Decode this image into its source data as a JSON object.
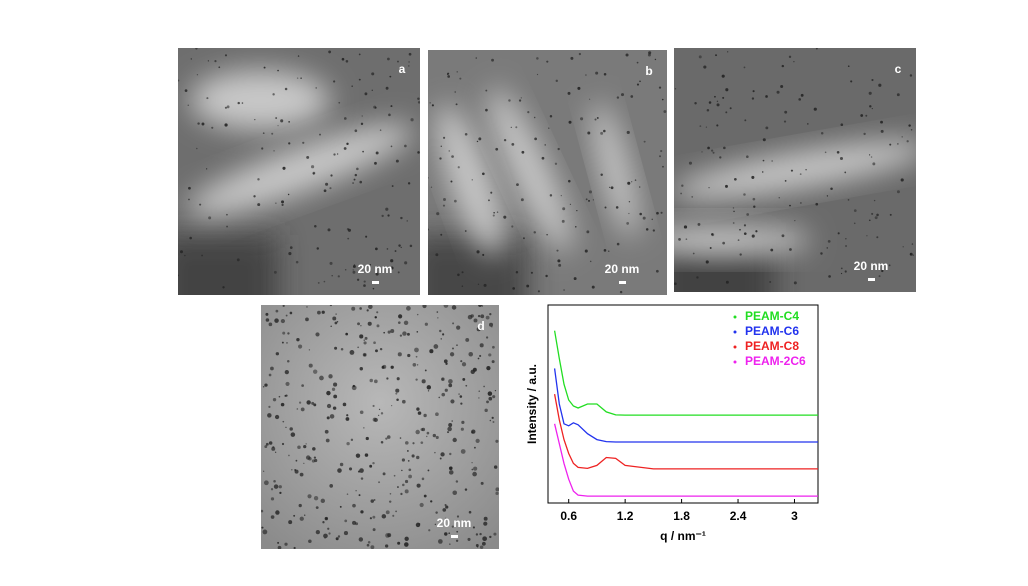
{
  "panels": [
    {
      "label": "a",
      "scale": "20 nm"
    },
    {
      "label": "b",
      "scale": "20 nm"
    },
    {
      "label": "c",
      "scale": "20 nm"
    },
    {
      "label": "d",
      "scale": "20 nm"
    }
  ],
  "chart_data": {
    "type": "line",
    "x_label": "q / nm⁻¹",
    "y_label": "Intensity / a.u.",
    "x": [
      0.45,
      0.5,
      0.55,
      0.6,
      0.65,
      0.7,
      0.8,
      0.9,
      1.0,
      1.1,
      1.2,
      1.5,
      2.0,
      2.5,
      3.0,
      3.25
    ],
    "series": [
      {
        "name": "PEAM-C4",
        "color": "#22dd22",
        "values": [
          8.7,
          7.3,
          6.0,
          5.2,
          4.9,
          4.8,
          5.0,
          5.0,
          4.6,
          4.45,
          4.44,
          4.44,
          4.44,
          4.44,
          4.44,
          4.44
        ]
      },
      {
        "name": "PEAM-C6",
        "color": "#2233ee",
        "values": [
          6.8,
          5.0,
          4.0,
          3.9,
          4.05,
          3.95,
          3.5,
          3.2,
          3.1,
          3.08,
          3.08,
          3.08,
          3.08,
          3.08,
          3.08,
          3.08
        ]
      },
      {
        "name": "PEAM-C8",
        "color": "#ee2222",
        "values": [
          5.5,
          4.2,
          3.2,
          2.5,
          2.0,
          1.8,
          1.75,
          1.9,
          2.3,
          2.25,
          1.9,
          1.72,
          1.72,
          1.72,
          1.72,
          1.72
        ]
      },
      {
        "name": "PEAM-2C6",
        "color": "#ee22ee",
        "values": [
          4.0,
          3.0,
          2.0,
          1.2,
          0.6,
          0.4,
          0.35,
          0.35,
          0.35,
          0.35,
          0.35,
          0.35,
          0.35,
          0.35,
          0.35,
          0.35
        ]
      }
    ],
    "xlim": [
      0.38,
      3.25
    ],
    "ylim": [
      0,
      10
    ],
    "xticks": [
      0.6,
      1.2,
      1.8,
      2.4,
      3.0
    ],
    "legend": "upper right"
  }
}
